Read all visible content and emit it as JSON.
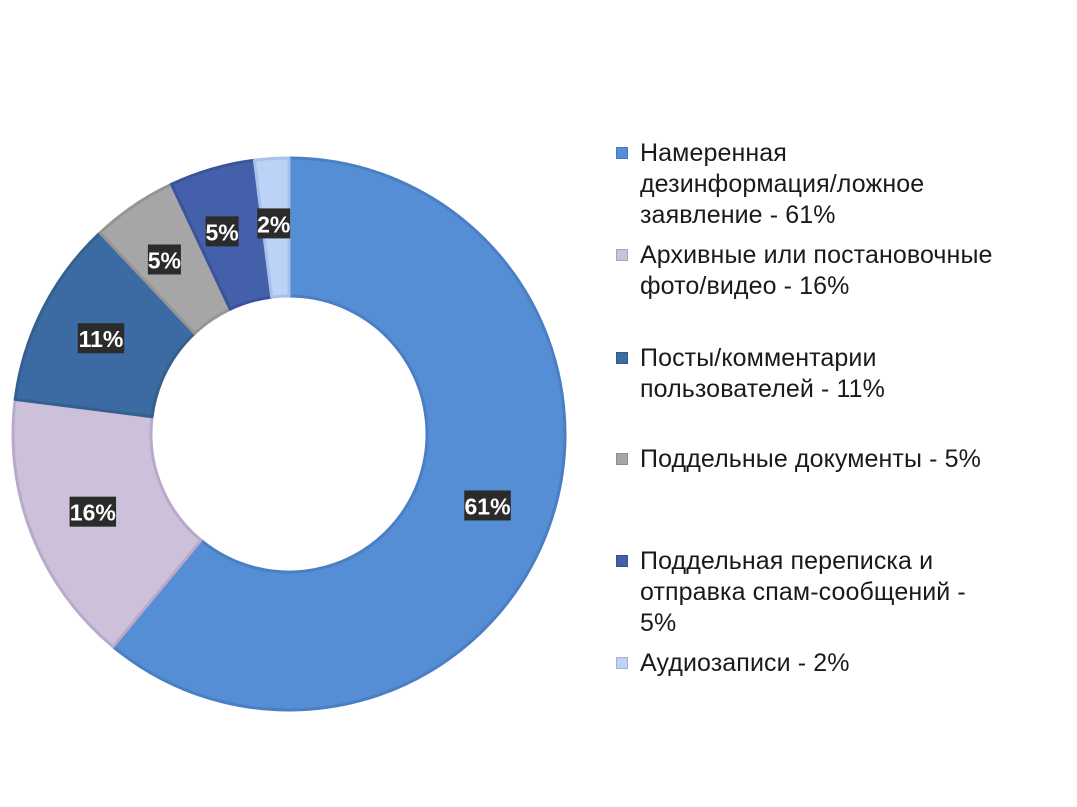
{
  "chart_data": {
    "type": "pie",
    "variant": "donut",
    "legend_position": "right",
    "start_angle_deg": 0,
    "direction": "clockwise",
    "series": [
      {
        "values": [
          61,
          16,
          11,
          5,
          5,
          2
        ],
        "labels": [
          "61%",
          "16%",
          "11%",
          "5%",
          "5%",
          "2%"
        ]
      }
    ],
    "categories": [
      "Намеренная дезинформация/ложное заявление - 61%",
      "Архивные или постановочные фото/видео - 16%",
      "Посты/комментарии пользователей - 11%",
      "Поддельные документы - 5%",
      "Поддельная переписка и отправка спам-сообщений - 5%",
      "Аудиозаписи - 2%"
    ],
    "colors": [
      "#558ed5",
      "#ccc0da",
      "#3c6aa3",
      "#a6a6a6",
      "#4460aa",
      "#bcd3f7"
    ],
    "edge_colors": [
      "#4a7fc4",
      "#b8aac8",
      "#34608f",
      "#959595",
      "#3a539a",
      "#a7c2ea"
    ]
  },
  "legend": {
    "items": [
      {
        "label_lines": [
          "Намеренная",
          "дезинформация/ложное",
          "заявление - 61%"
        ]
      },
      {
        "label_lines": [
          "Архивные или постановочные",
          "фото/видео - 16%"
        ]
      },
      {
        "label_lines": [
          "Посты/комментарии",
          "пользователей - 11%"
        ]
      },
      {
        "label_lines": [
          "Поддельные документы - 5%"
        ]
      },
      {
        "label_lines": [
          "Поддельная переписка и",
          "отправка спам-сообщений -",
          "5%"
        ]
      },
      {
        "label_lines": [
          "Аудиозаписи - 2%"
        ]
      }
    ]
  }
}
